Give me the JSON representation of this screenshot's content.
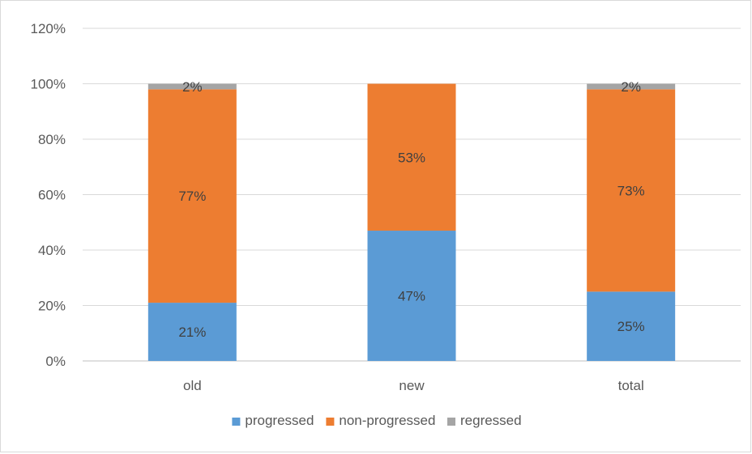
{
  "chart_data": {
    "type": "bar",
    "stacked": true,
    "categories": [
      "old",
      "new",
      "total"
    ],
    "series": [
      {
        "name": "progressed",
        "color": "#5B9BD5",
        "values": [
          21,
          47,
          25
        ],
        "labels": [
          "21%",
          "47%",
          "25%"
        ]
      },
      {
        "name": "non-progressed",
        "color": "#ED7D31",
        "values": [
          77,
          53,
          73
        ],
        "labels": [
          "77%",
          "53%",
          "73%"
        ]
      },
      {
        "name": "regressed",
        "color": "#A5A5A5",
        "values": [
          2,
          0,
          2
        ],
        "labels": [
          "2%",
          "",
          "2%"
        ]
      }
    ],
    "ylim": [
      0,
      120
    ],
    "yticks": [
      0,
      20,
      40,
      60,
      80,
      100,
      120
    ],
    "ytick_labels": [
      "0%",
      "20%",
      "40%",
      "60%",
      "80%",
      "100%",
      "120%"
    ],
    "grid": true,
    "legend_position": "bottom",
    "title": "",
    "xlabel": "",
    "ylabel": ""
  }
}
